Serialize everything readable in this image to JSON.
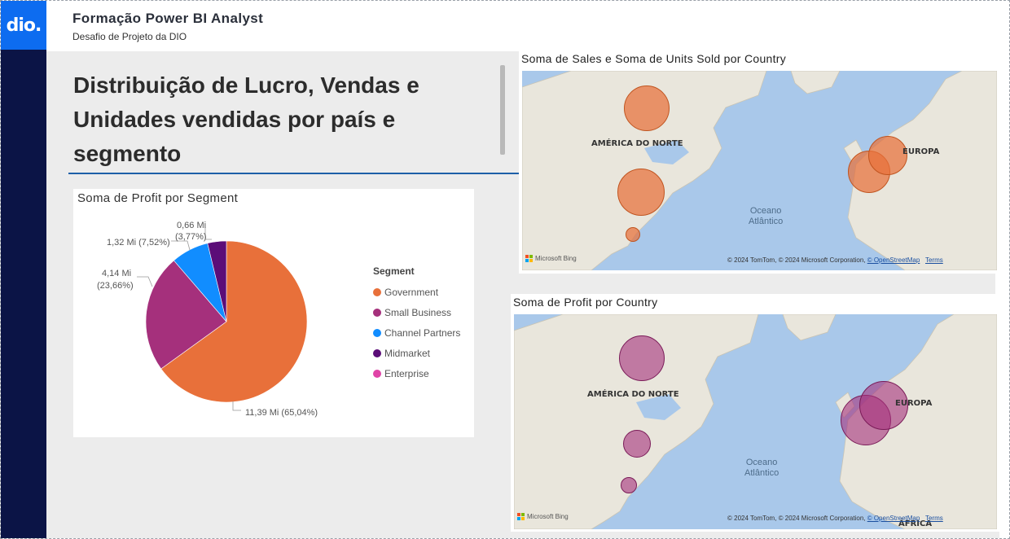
{
  "header": {
    "logo": "dio.",
    "title": "Formação Power BI Analyst",
    "subtitle": "Desafio de Projeto da DIO"
  },
  "heading": {
    "line1": "Distribuição de Lucro, Vendas e",
    "line2": "Unidades vendidas por país e",
    "line3": "segmento"
  },
  "pie_chart": {
    "title": "Soma de Profit por Segment",
    "legend_title": "Segment",
    "legend": [
      {
        "label": "Government",
        "color": "#e8703a"
      },
      {
        "label": "Small Business",
        "color": "#a5307c"
      },
      {
        "label": "Channel Partners",
        "color": "#118dff"
      },
      {
        "label": "Midmarket",
        "color": "#5b0d78"
      },
      {
        "label": "Enterprise",
        "color": "#e044a7"
      }
    ],
    "labels": {
      "government": "11,39 Mi (65,04%)",
      "small_business_1": "4,14 Mi",
      "small_business_2": "(23,66%)",
      "channel_partners": "1,32 Mi (7,52%)",
      "midmarket_1": "0,66 Mi",
      "midmarket_2": "(3,77%)"
    }
  },
  "chart_data": {
    "type": "pie",
    "title": "Soma de Profit por Segment",
    "categories": [
      "Government",
      "Small Business",
      "Channel Partners",
      "Midmarket",
      "Enterprise"
    ],
    "values": [
      11.39,
      4.14,
      1.32,
      0.66,
      0
    ],
    "percents": [
      65.04,
      23.66,
      7.52,
      3.77,
      0
    ],
    "unit": "Mi",
    "legend_position": "right"
  },
  "map1": {
    "title": "Soma de Sales e Soma de Units Sold por Country",
    "region_na": "AMÉRICA DO NORTE",
    "region_eu": "EUROPA",
    "ocean_1": "Oceano",
    "ocean_2": "Atlântico",
    "bubble_color": "#e8703a",
    "bing": "Microsoft Bing",
    "attrib_text": "© 2024 TomTom, © 2024 Microsoft Corporation, ",
    "attrib_osm": "© OpenStreetMap",
    "attrib_terms": "Terms"
  },
  "map2": {
    "title": "Soma de Profit por Country",
    "region_na": "AMÉRICA DO NORTE",
    "region_eu": "EUROPA",
    "region_af": "ÁFRICA",
    "ocean_1": "Oceano",
    "ocean_2": "Atlântico",
    "bubble_color": "#a5307c",
    "bing": "Microsoft Bing",
    "attrib_text": "© 2024 TomTom, © 2024 Microsoft Corporation, ",
    "attrib_osm": "© OpenStreetMap",
    "attrib_terms": "Terms"
  }
}
